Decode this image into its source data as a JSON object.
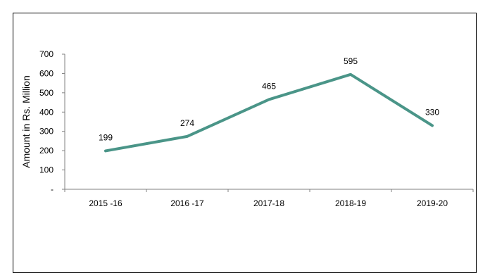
{
  "chart_data": {
    "type": "line",
    "title": "",
    "xlabel": "",
    "ylabel": "Amount in Rs. Million",
    "categories": [
      "2015 -16",
      "2016 -17",
      "2017-18",
      "2018-19",
      "2019-20"
    ],
    "series": [
      {
        "values": [
          199,
          274,
          465,
          595,
          330
        ],
        "color": "#4a9588"
      }
    ],
    "ylim": [
      0,
      700
    ],
    "yticks": [
      0,
      100,
      200,
      300,
      400,
      500,
      600,
      700
    ],
    "ytick_labels": [
      "-",
      "100",
      "200",
      "300",
      "400",
      "500",
      "600",
      "700"
    ],
    "data_labels": [
      "199",
      "274",
      "465",
      "595",
      "330"
    ],
    "grid": false,
    "legend": "none"
  }
}
